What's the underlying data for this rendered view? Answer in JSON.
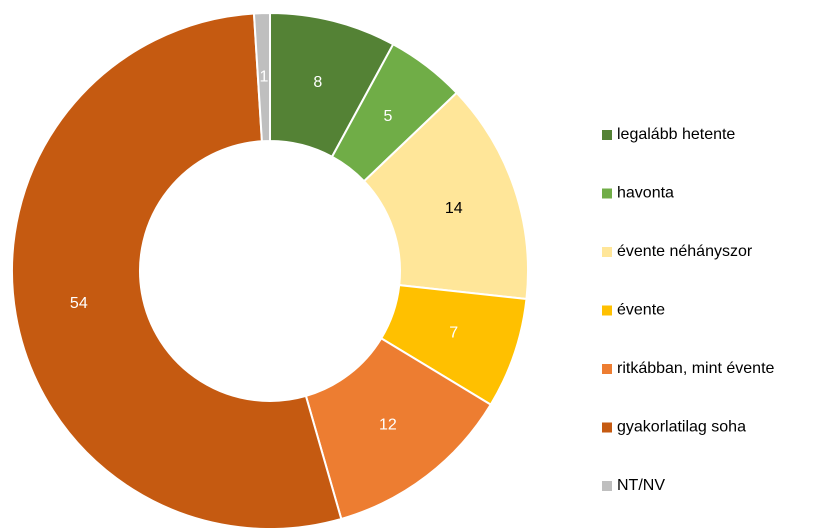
{
  "chart_data": {
    "type": "donut",
    "categories": [
      "legalább hetente",
      "havonta",
      "évente néhányszor",
      "évente",
      "ritkábban, mint évente",
      "gyakorlatilag soha",
      "NT/NV"
    ],
    "values": [
      8,
      5,
      14,
      7,
      12,
      54,
      1
    ],
    "colors": [
      "#548235",
      "#70ad47",
      "#ffe699",
      "#ffc000",
      "#ed7d31",
      "#c55a11",
      "#bfbfbf"
    ],
    "label_colors": [
      "#ffffff",
      "#ffffff",
      "#000000",
      "#ffffff",
      "#ffffff",
      "#ffffff",
      "#ffffff"
    ],
    "legend": "right"
  }
}
